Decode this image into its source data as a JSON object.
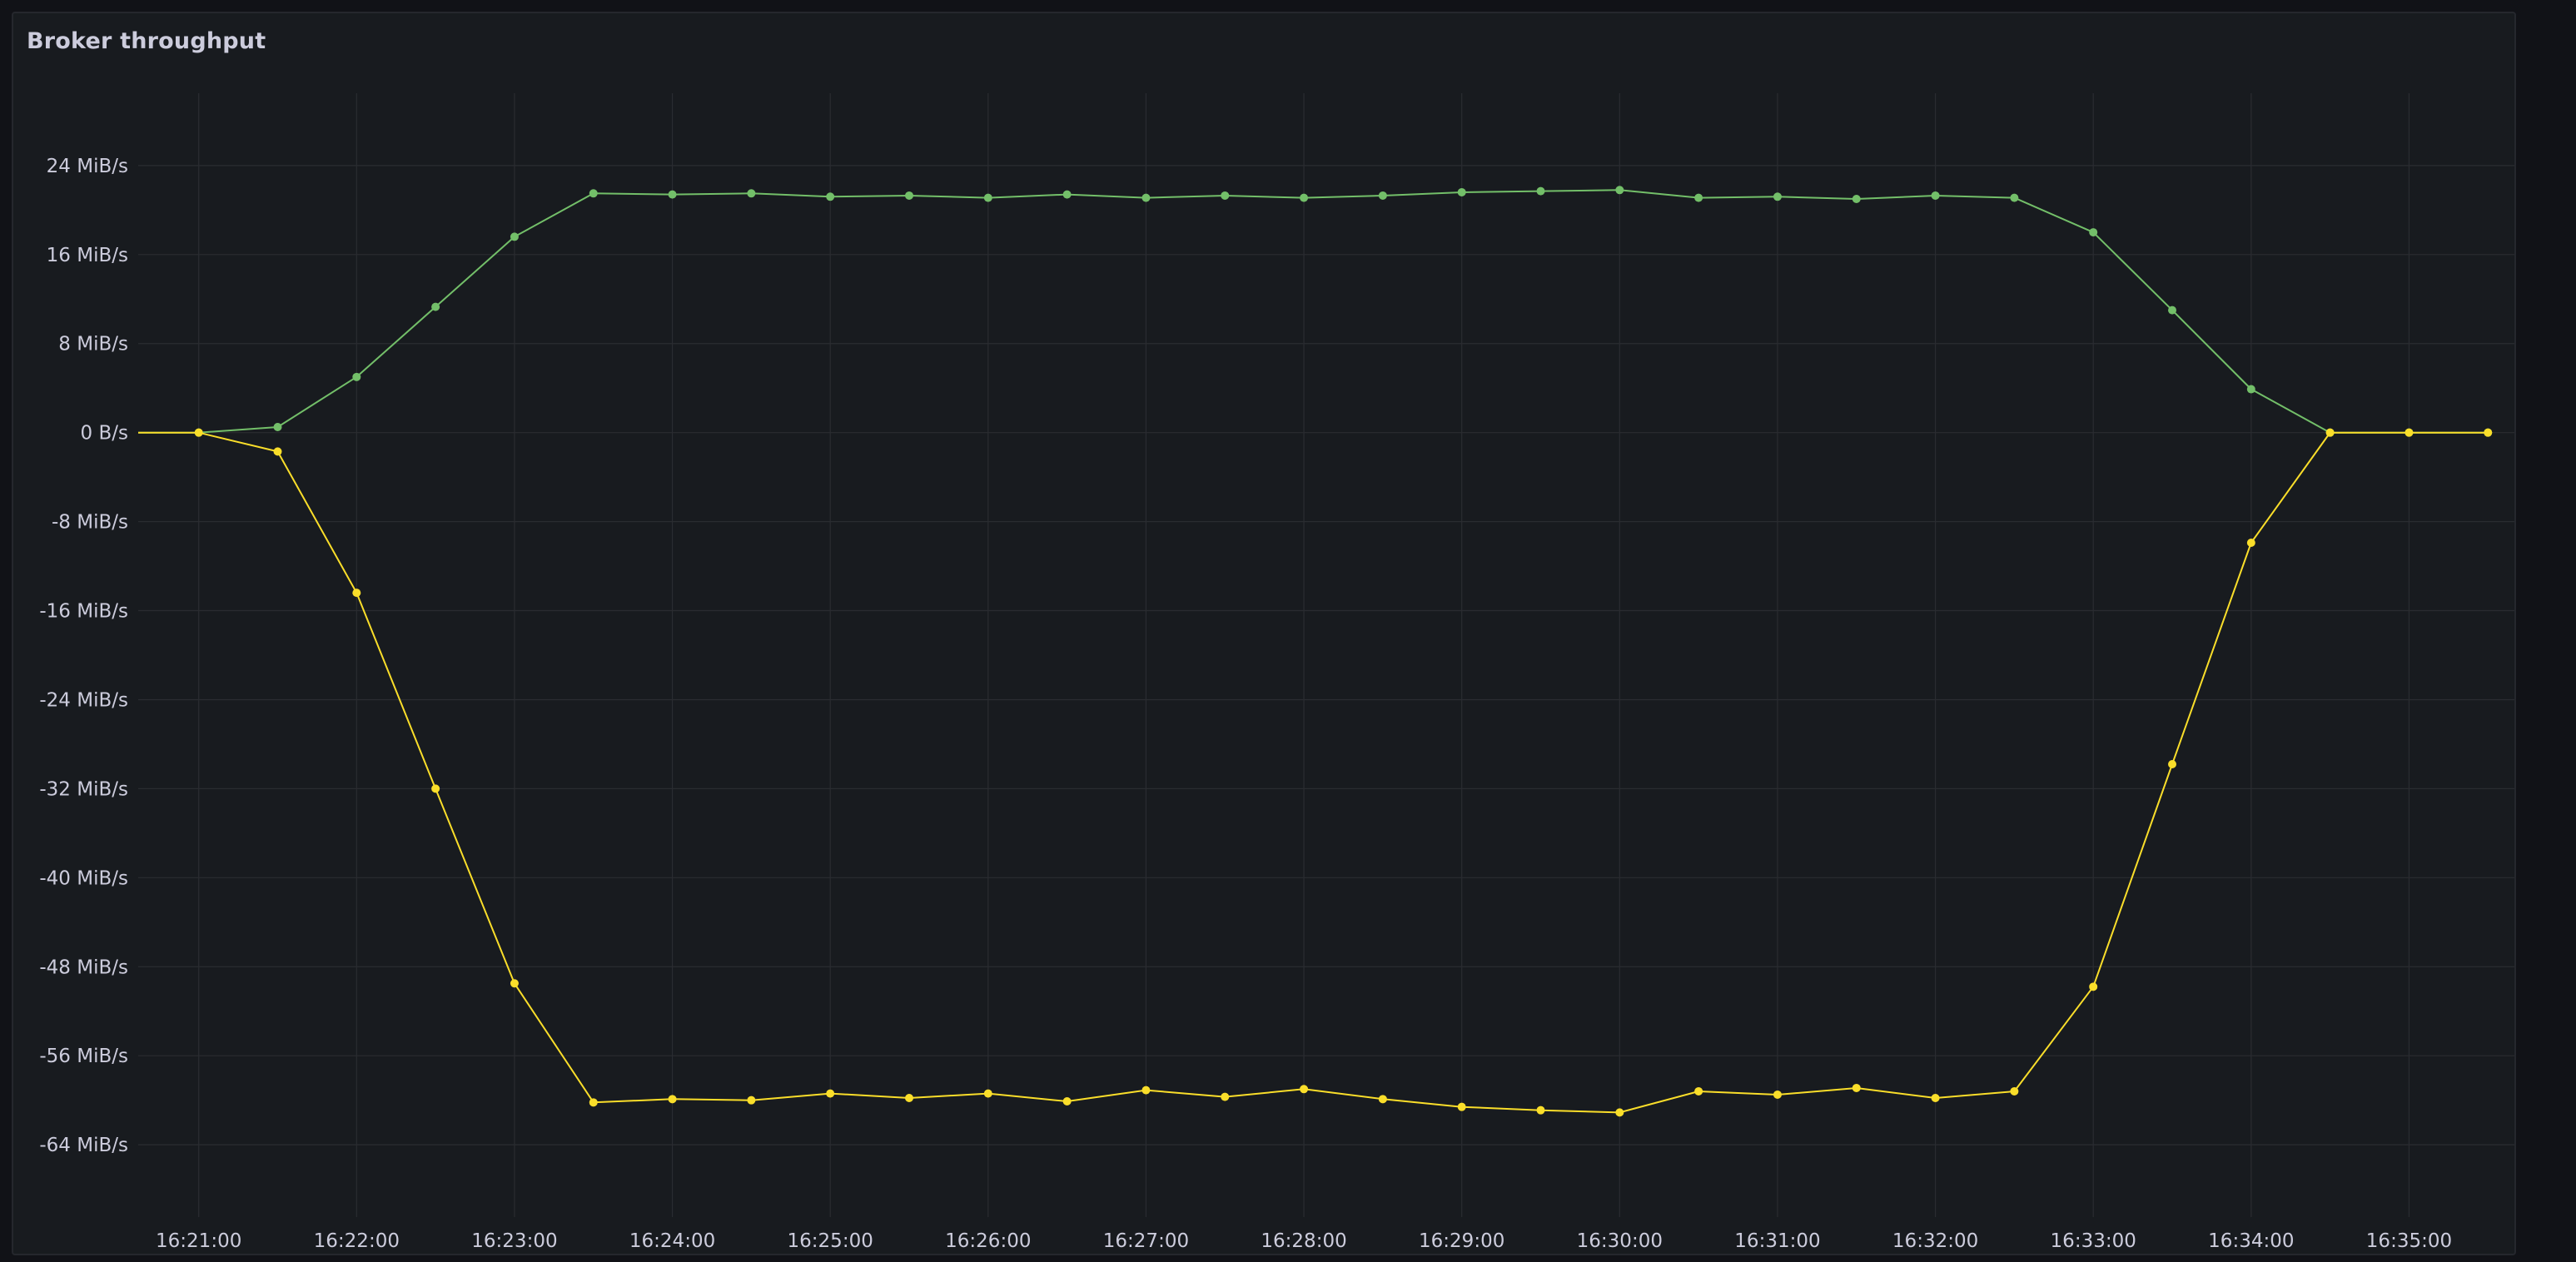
{
  "panel": {
    "title": "Broker throughput"
  },
  "colors": {
    "background": "#111217",
    "panel_background": "#181b1f",
    "grid": "#2a2c31",
    "text": "#ccccdc"
  },
  "chart_data": {
    "type": "line",
    "title": "Broker throughput",
    "xlabel": "",
    "ylabel": "",
    "y_unit": "MiB/s",
    "x_ticks": [
      "16:21:00",
      "16:22:00",
      "16:23:00",
      "16:24:00",
      "16:25:00",
      "16:26:00",
      "16:27:00",
      "16:28:00",
      "16:29:00",
      "16:30:00",
      "16:31:00",
      "16:32:00",
      "16:33:00",
      "16:34:00",
      "16:35:00"
    ],
    "y_ticks": [
      {
        "value": 24,
        "label": "24 MiB/s"
      },
      {
        "value": 16,
        "label": "16 MiB/s"
      },
      {
        "value": 8,
        "label": "8 MiB/s"
      },
      {
        "value": 0,
        "label": "0 B/s"
      },
      {
        "value": -8,
        "label": "-8 MiB/s"
      },
      {
        "value": -16,
        "label": "-16 MiB/s"
      },
      {
        "value": -24,
        "label": "-24 MiB/s"
      },
      {
        "value": -32,
        "label": "-32 MiB/s"
      },
      {
        "value": -40,
        "label": "-40 MiB/s"
      },
      {
        "value": -48,
        "label": "-48 MiB/s"
      },
      {
        "value": -56,
        "label": "-56 MiB/s"
      },
      {
        "value": -64,
        "label": "-64 MiB/s"
      }
    ],
    "xlim": [
      "16:20:37",
      "16:35:47"
    ],
    "ylim": [
      -70.5,
      30.5
    ],
    "grid": true,
    "legend": false,
    "x": [
      "16:20:37",
      "16:21:00",
      "16:21:30",
      "16:22:00",
      "16:22:30",
      "16:23:00",
      "16:23:30",
      "16:24:00",
      "16:24:30",
      "16:25:00",
      "16:25:30",
      "16:26:00",
      "16:26:30",
      "16:27:00",
      "16:27:30",
      "16:28:00",
      "16:28:30",
      "16:29:00",
      "16:29:30",
      "16:30:00",
      "16:30:30",
      "16:31:00",
      "16:31:30",
      "16:32:00",
      "16:32:30",
      "16:33:00",
      "16:33:30",
      "16:34:00",
      "16:34:30",
      "16:35:00",
      "16:35:30"
    ],
    "series": [
      {
        "color": "#73bf69",
        "values": [
          0,
          0,
          0.5,
          5,
          11.3,
          17.6,
          21.5,
          21.4,
          21.5,
          21.2,
          21.3,
          21.1,
          21.4,
          21.1,
          21.3,
          21.1,
          21.3,
          21.6,
          21.7,
          21.8,
          21.1,
          21.2,
          21.0,
          21.3,
          21.1,
          18.0,
          11.0,
          3.9,
          0,
          0,
          0
        ],
        "markers": [
          false,
          true,
          true,
          true,
          true,
          true,
          true,
          true,
          true,
          true,
          true,
          true,
          true,
          true,
          true,
          true,
          true,
          true,
          true,
          true,
          true,
          true,
          true,
          true,
          true,
          true,
          true,
          true,
          true,
          true,
          true
        ]
      },
      {
        "color": "#fade2a",
        "values": [
          0,
          0,
          -1.7,
          -14.4,
          -32,
          -49.5,
          -60.2,
          -59.9,
          -60.0,
          -59.4,
          -59.8,
          -59.4,
          -60.1,
          -59.1,
          -59.7,
          -59.0,
          -59.9,
          -60.6,
          -60.9,
          -61.1,
          -59.2,
          -59.5,
          -58.9,
          -59.8,
          -59.2,
          -49.8,
          -29.8,
          -9.9,
          0,
          0,
          0
        ],
        "markers": [
          false,
          true,
          true,
          true,
          true,
          true,
          true,
          true,
          true,
          true,
          true,
          true,
          true,
          true,
          true,
          true,
          true,
          true,
          true,
          true,
          true,
          true,
          true,
          true,
          true,
          true,
          true,
          true,
          true,
          true,
          true
        ]
      }
    ]
  }
}
